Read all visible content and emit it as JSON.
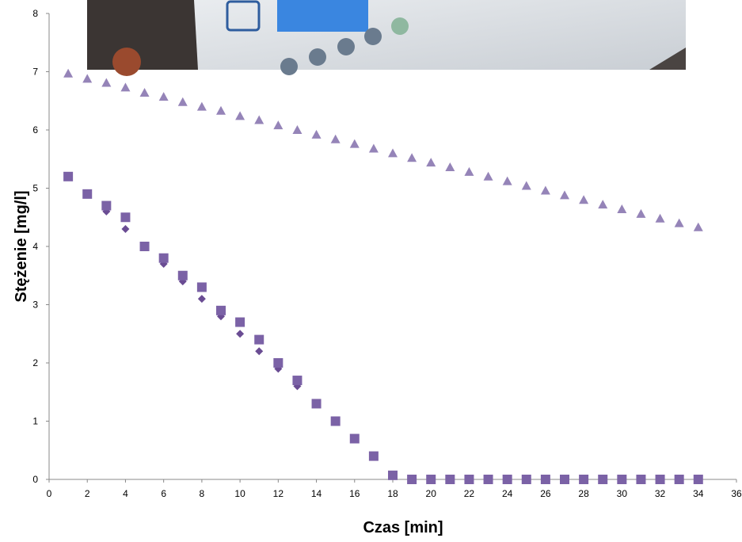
{
  "chart_data": {
    "type": "scatter",
    "x_label": "Czas [min]",
    "y_label": "Stężenie  [mg/l]",
    "xlim": [
      0,
      36
    ],
    "xticks": [
      0,
      2,
      4,
      6,
      8,
      10,
      12,
      14,
      16,
      18,
      20,
      22,
      24,
      26,
      28,
      30,
      32,
      34,
      36
    ],
    "ylim": [
      0,
      8
    ],
    "yticks": [
      0,
      1,
      2,
      3,
      4,
      5,
      6,
      7,
      8
    ],
    "grid": false,
    "series": [
      {
        "color": "#9584b8",
        "marker": "triangle",
        "x": [
          1,
          2,
          3,
          4,
          5,
          6,
          7,
          8,
          9,
          10,
          11,
          12,
          13,
          14,
          15,
          16,
          17,
          18,
          19,
          20,
          21,
          22,
          23,
          24,
          25,
          26,
          27,
          28,
          29,
          30,
          31,
          32,
          33,
          34
        ],
        "values": [
          6.97,
          6.88,
          6.81,
          6.73,
          6.64,
          6.57,
          6.48,
          6.4,
          6.33,
          6.24,
          6.17,
          6.08,
          6.0,
          5.92,
          5.84,
          5.76,
          5.68,
          5.6,
          5.52,
          5.44,
          5.36,
          5.28,
          5.2,
          5.12,
          5.04,
          4.96,
          4.88,
          4.8,
          4.72,
          4.64,
          4.56,
          4.48,
          4.4,
          4.33
        ]
      },
      {
        "color": "#6a4c93",
        "marker": "diamond",
        "x": [
          1,
          2,
          3,
          4,
          5,
          6,
          7,
          8,
          9,
          10,
          11,
          12,
          13,
          14,
          15,
          16,
          17,
          18
        ],
        "values": [
          5.2,
          4.9,
          4.6,
          4.3,
          4.0,
          3.7,
          3.4,
          3.1,
          2.8,
          2.5,
          2.2,
          1.9,
          1.6,
          1.3,
          1.0,
          0.7,
          0.4,
          0.07
        ]
      },
      {
        "color": "#7b62a6",
        "marker": "square",
        "x": [
          1,
          2,
          3,
          4,
          5,
          6,
          7,
          8,
          9,
          10,
          11,
          12,
          13,
          14,
          15,
          16,
          17,
          18,
          19,
          20,
          21,
          22,
          23,
          24,
          25,
          26,
          27,
          28,
          29,
          30,
          31,
          32,
          33,
          34
        ],
        "values": [
          5.2,
          4.9,
          4.7,
          4.5,
          4.0,
          3.8,
          3.5,
          3.3,
          2.9,
          2.7,
          2.4,
          2.0,
          1.7,
          1.3,
          1.0,
          0.7,
          0.4,
          0.07,
          0,
          0,
          0,
          0,
          0,
          0,
          0,
          0,
          0,
          0,
          0,
          0,
          0,
          0,
          0,
          0
        ]
      }
    ]
  }
}
